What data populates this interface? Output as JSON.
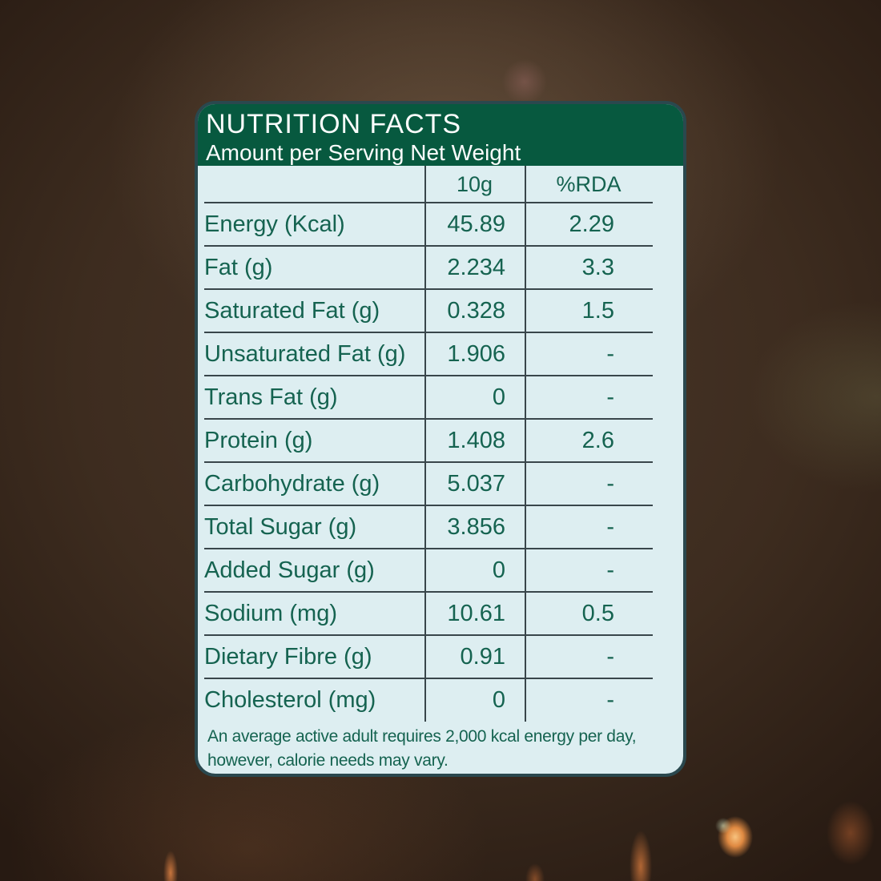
{
  "label": {
    "title": "NUTRITION FACTS",
    "subtitle": "Amount per Serving Net Weight",
    "columns": {
      "serving": "10g",
      "rda": "%RDA"
    },
    "rows": [
      {
        "name": "Energy (Kcal)",
        "amount": "45.89",
        "rda": "2.29"
      },
      {
        "name": "Fat (g)",
        "amount": "2.234",
        "rda": "3.3"
      },
      {
        "name": "Saturated Fat (g)",
        "amount": "0.328",
        "rda": "1.5"
      },
      {
        "name": "Unsaturated Fat (g)",
        "amount": "1.906",
        "rda": "-"
      },
      {
        "name": "Trans Fat (g)",
        "amount": "0",
        "rda": "-"
      },
      {
        "name": "Protein (g)",
        "amount": "1.408",
        "rda": "2.6"
      },
      {
        "name": "Carbohydrate (g)",
        "amount": "5.037",
        "rda": "-"
      },
      {
        "name": "Total Sugar (g)",
        "amount": "3.856",
        "rda": "-"
      },
      {
        "name": "Added Sugar (g)",
        "amount": "0",
        "rda": "-"
      },
      {
        "name": "Sodium (mg)",
        "amount": "10.61",
        "rda": "0.5"
      },
      {
        "name": "Dietary Fibre (g)",
        "amount": "0.91",
        "rda": "-"
      },
      {
        "name": "Cholesterol (mg)",
        "amount": "0",
        "rda": "-"
      }
    ],
    "footnote": [
      "An average active adult requires 2,000 kcal energy per day,",
      "however, calorie needs may vary."
    ]
  },
  "colors": {
    "header_green": "#07593f",
    "body_background": "#ddeef1",
    "text_green": "#156350",
    "rule_line": "#39464b",
    "card_border": "#2a484e",
    "photo_background_brown": "#3b2a1d",
    "spark_orange": "#e08a42"
  }
}
